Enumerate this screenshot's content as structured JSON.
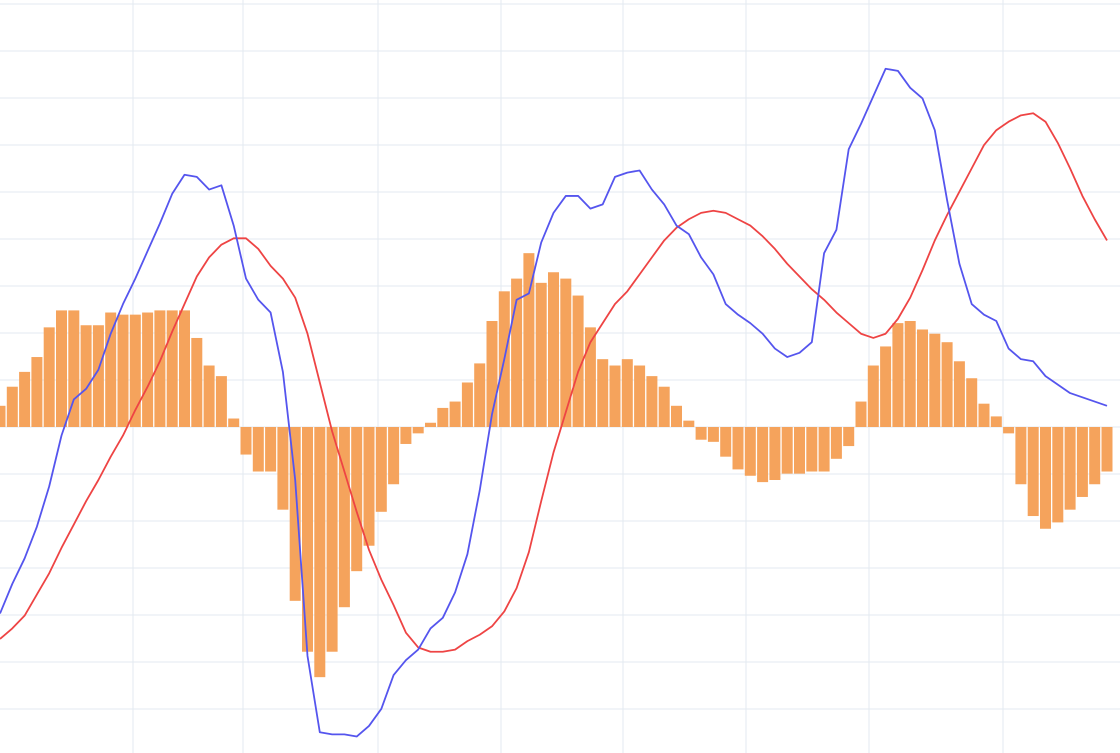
{
  "chart_data": {
    "type": "macd",
    "grid": true,
    "ylim": [
      -1.45,
      2.1
    ],
    "x_count": 91,
    "colors": {
      "histogram": "#F5A35C",
      "macd_line": "#5555EE",
      "signal_line": "#EE4444",
      "grid": "#E3EAF0"
    },
    "series": [
      {
        "type": "bar",
        "values": [
          0.1,
          0.19,
          0.26,
          0.33,
          0.47,
          0.55,
          0.55,
          0.48,
          0.48,
          0.54,
          0.53,
          0.53,
          0.54,
          0.55,
          0.55,
          0.55,
          0.42,
          0.29,
          0.24,
          0.04,
          -0.13,
          -0.21,
          -0.21,
          -0.39,
          -0.82,
          -1.06,
          -1.18,
          -1.06,
          -0.85,
          -0.68,
          -0.56,
          -0.4,
          -0.27,
          -0.08,
          -0.03,
          0.02,
          0.09,
          0.12,
          0.21,
          0.3,
          0.5,
          0.64,
          0.7,
          0.82,
          0.68,
          0.73,
          0.7,
          0.62,
          0.47,
          0.32,
          0.29,
          0.32,
          0.29,
          0.24,
          0.19,
          0.1,
          0.03,
          -0.06,
          -0.07,
          -0.14,
          -0.2,
          -0.23,
          -0.26,
          -0.25,
          -0.22,
          -0.22,
          -0.21,
          -0.21,
          -0.15,
          -0.09,
          0.12,
          0.29,
          0.38,
          0.49,
          0.5,
          0.46,
          0.44,
          0.4,
          0.31,
          0.23,
          0.11,
          0.05,
          -0.03,
          -0.27,
          -0.42,
          -0.48,
          -0.45,
          -0.39,
          -0.33,
          -0.27,
          -0.21
        ]
      },
      {
        "type": "line",
        "values": [
          -0.88,
          -0.74,
          -0.62,
          -0.47,
          -0.28,
          -0.04,
          0.13,
          0.18,
          0.27,
          0.44,
          0.58,
          0.7,
          0.83,
          0.96,
          1.1,
          1.19,
          1.18,
          1.12,
          1.14,
          0.95,
          0.7,
          0.6,
          0.54,
          0.26,
          -0.25,
          -1.08,
          -1.44,
          -1.45,
          -1.45,
          -1.46,
          -1.41,
          -1.33,
          -1.17,
          -1.1,
          -1.05,
          -0.95,
          -0.9,
          -0.78,
          -0.6,
          -0.3,
          0.06,
          0.32,
          0.6,
          0.63,
          0.87,
          1.01,
          1.09,
          1.09,
          1.03,
          1.05,
          1.18,
          1.2,
          1.21,
          1.12,
          1.05,
          0.95,
          0.91,
          0.8,
          0.72,
          0.58,
          0.53,
          0.49,
          0.44,
          0.37,
          0.33,
          0.35,
          0.4,
          0.82,
          0.93,
          1.31,
          1.43,
          1.56,
          1.69,
          1.68,
          1.6,
          1.55,
          1.4,
          1.07,
          0.77,
          0.58,
          0.53,
          0.5,
          0.37,
          0.32,
          0.31,
          0.24,
          0.2,
          0.16,
          0.14,
          0.12,
          0.1
        ]
      },
      {
        "type": "line",
        "values": [
          -1.0,
          -0.95,
          -0.89,
          -0.79,
          -0.69,
          -0.57,
          -0.46,
          -0.35,
          -0.25,
          -0.14,
          -0.04,
          0.08,
          0.19,
          0.31,
          0.45,
          0.58,
          0.71,
          0.8,
          0.86,
          0.89,
          0.89,
          0.84,
          0.76,
          0.7,
          0.61,
          0.44,
          0.21,
          -0.02,
          -0.21,
          -0.4,
          -0.58,
          -0.72,
          -0.84,
          -0.97,
          -1.04,
          -1.06,
          -1.06,
          -1.05,
          -1.01,
          -0.98,
          -0.94,
          -0.87,
          -0.76,
          -0.59,
          -0.35,
          -0.12,
          0.07,
          0.26,
          0.4,
          0.49,
          0.58,
          0.64,
          0.72,
          0.8,
          0.88,
          0.94,
          0.98,
          1.01,
          1.02,
          1.01,
          0.98,
          0.95,
          0.9,
          0.84,
          0.77,
          0.71,
          0.65,
          0.6,
          0.54,
          0.49,
          0.44,
          0.42,
          0.44,
          0.51,
          0.61,
          0.74,
          0.88,
          1.0,
          1.11,
          1.22,
          1.33,
          1.4,
          1.44,
          1.47,
          1.48,
          1.44,
          1.34,
          1.22,
          1.09,
          0.98,
          0.88
        ]
      }
    ]
  }
}
